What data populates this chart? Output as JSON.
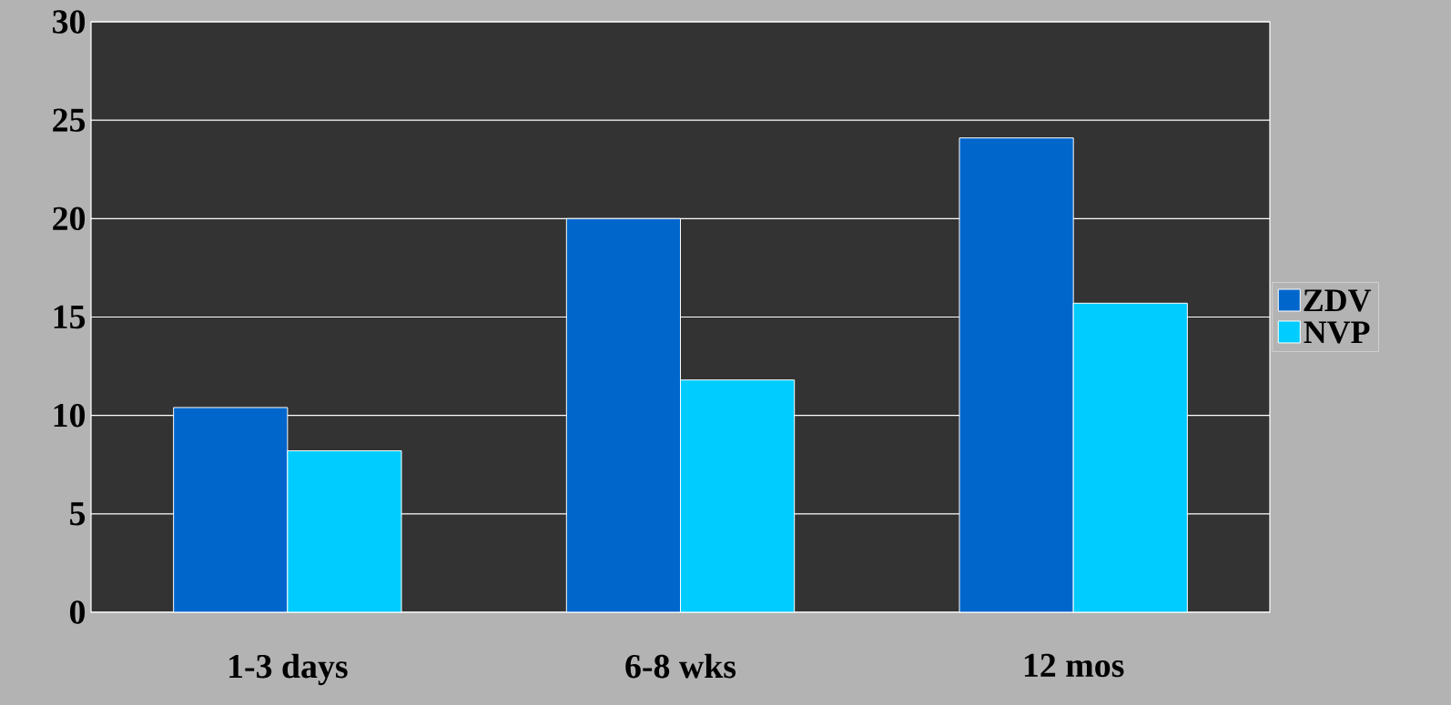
{
  "chart_data": {
    "type": "bar",
    "categories": [
      "1-3 days",
      "6-8 wks",
      "12 mos"
    ],
    "series": [
      {
        "name": "ZDV",
        "color": "#0066cc",
        "values": [
          10.4,
          20.0,
          24.1
        ]
      },
      {
        "name": "NVP",
        "color": "#00ccff",
        "values": [
          8.2,
          11.8,
          15.7
        ]
      }
    ],
    "ylim": [
      0,
      30
    ],
    "yticks": [
      0,
      5,
      10,
      15,
      20,
      25,
      30
    ],
    "grid": "y",
    "legend": "right"
  }
}
